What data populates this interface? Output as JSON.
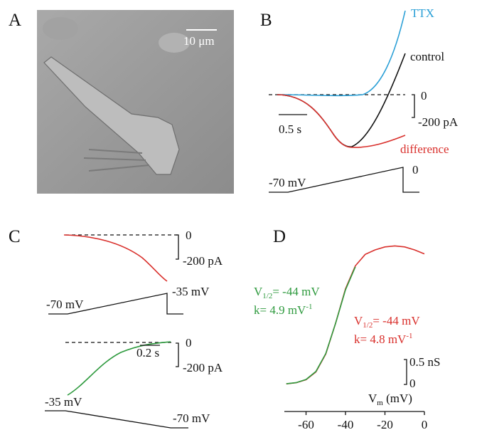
{
  "panels": {
    "A": {
      "label": "A",
      "scale_bar": "10 μm"
    },
    "B": {
      "label": "B",
      "traces": [
        "TTX",
        "control",
        "difference"
      ],
      "current_zero": "0",
      "current_scale": "-200 pA",
      "time_scale": "0.5 s",
      "voltage_start": "-70 mV",
      "voltage_end": "0"
    },
    "C": {
      "label": "C",
      "top": {
        "current_zero": "0",
        "current_scale": "-200 pA",
        "voltage_start": "-70 mV",
        "voltage_end": "-35 mV"
      },
      "bottom": {
        "current_zero": "0",
        "current_scale": "-200 pA",
        "time_scale": "0.2 s",
        "voltage_start": "-35 mV",
        "voltage_end": "-70 mV"
      }
    }
  },
  "chart_data": {
    "type": "line",
    "label": "D",
    "x": [
      -70,
      -65,
      -60,
      -55,
      -50,
      -45,
      -40,
      -35,
      -30,
      -25,
      -20,
      -15,
      -10,
      -5,
      0
    ],
    "series": [
      {
        "color": "#d9302c",
        "values": [
          0.012,
          0.034,
          0.095,
          0.25,
          0.61,
          1.23,
          1.92,
          2.38,
          2.61,
          2.7,
          2.76,
          2.78,
          2.76,
          2.7,
          2.62
        ]
      },
      {
        "color": "#2e9a3e",
        "values": [
          0.013,
          0.036,
          0.1,
          0.26,
          0.62,
          1.23,
          1.9,
          2.36,
          null,
          null,
          null,
          null,
          null,
          null,
          null
        ]
      }
    ],
    "xlim": [
      -71,
      0
    ],
    "xticks": [
      -60,
      -40,
      -20,
      0
    ],
    "xlabel": {
      "main": "V",
      "sub": "m",
      "rest": " (mV)"
    },
    "scale_bar": {
      "value": 0.5,
      "label": "0.5 nS",
      "zero": "0"
    },
    "fit_green": {
      "v_main": "V",
      "v_sub": "1/2",
      "v_rest": "= -44 mV",
      "k_main": "k= 4.9 mV",
      "k_sup": "-1"
    },
    "fit_red": {
      "v_main": "V",
      "v_sub": "1/2",
      "v_rest": "= -44 mV",
      "k_main": "k= 4.8 mV",
      "k_sup": "-1"
    }
  }
}
